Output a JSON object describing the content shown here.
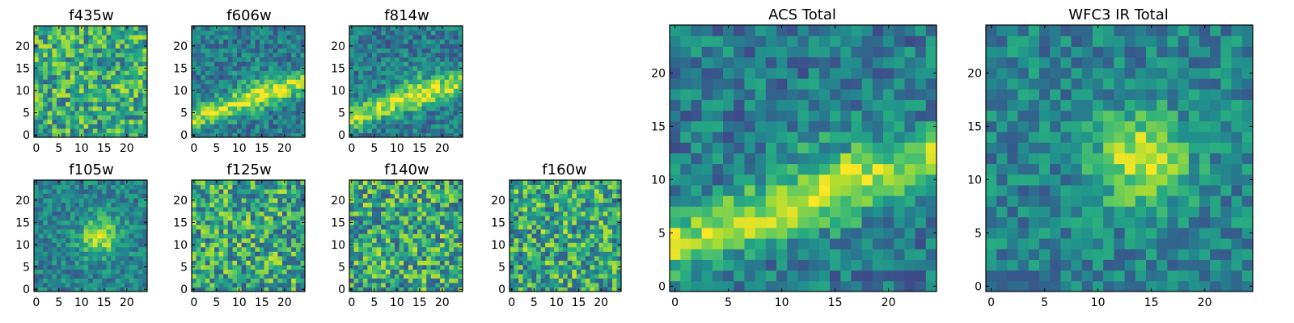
{
  "chart_data": [
    {
      "type": "heatmap",
      "title": "f435w",
      "xticks": [
        "0",
        "5",
        "10",
        "15",
        "20"
      ],
      "yticks": [
        "0",
        "5",
        "10",
        "15",
        "20"
      ],
      "xlim": [
        0,
        24
      ],
      "ylim": [
        0,
        24
      ],
      "grid": false,
      "colormap": "viridis",
      "pattern": "noise",
      "seed": 11
    },
    {
      "type": "heatmap",
      "title": "f606w",
      "xticks": [
        "0",
        "5",
        "10",
        "15",
        "20"
      ],
      "yticks": [
        "0",
        "5",
        "10",
        "15",
        "20"
      ],
      "xlim": [
        0,
        24
      ],
      "ylim": [
        0,
        24
      ],
      "grid": false,
      "colormap": "viridis",
      "pattern": "band",
      "seed": 23
    },
    {
      "type": "heatmap",
      "title": "f814w",
      "xticks": [
        "0",
        "5",
        "10",
        "15",
        "20"
      ],
      "yticks": [
        "0",
        "5",
        "10",
        "15",
        "20"
      ],
      "xlim": [
        0,
        24
      ],
      "ylim": [
        0,
        24
      ],
      "grid": false,
      "colormap": "viridis",
      "pattern": "band",
      "seed": 37
    },
    {
      "type": "heatmap",
      "title": "f105w",
      "xticks": [
        "0",
        "5",
        "10",
        "15",
        "20"
      ],
      "yticks": [
        "0",
        "5",
        "10",
        "15",
        "20"
      ],
      "xlim": [
        0,
        24
      ],
      "ylim": [
        0,
        24
      ],
      "grid": false,
      "colormap": "viridis",
      "pattern": "blob",
      "seed": 41
    },
    {
      "type": "heatmap",
      "title": "f125w",
      "xticks": [
        "0",
        "5",
        "10",
        "15",
        "20"
      ],
      "yticks": [
        "0",
        "5",
        "10",
        "15",
        "20"
      ],
      "xlim": [
        0,
        24
      ],
      "ylim": [
        0,
        24
      ],
      "grid": false,
      "colormap": "viridis",
      "pattern": "noise-bright",
      "seed": 53
    },
    {
      "type": "heatmap",
      "title": "f140w",
      "xticks": [
        "0",
        "5",
        "10",
        "15",
        "20"
      ],
      "yticks": [
        "0",
        "5",
        "10",
        "15",
        "20"
      ],
      "xlim": [
        0,
        24
      ],
      "ylim": [
        0,
        24
      ],
      "grid": false,
      "colormap": "viridis",
      "pattern": "noise-bright",
      "seed": 67
    },
    {
      "type": "heatmap",
      "title": "f160w",
      "xticks": [
        "0",
        "5",
        "10",
        "15",
        "20"
      ],
      "yticks": [
        "0",
        "5",
        "10",
        "15",
        "20"
      ],
      "xlim": [
        0,
        24
      ],
      "ylim": [
        0,
        24
      ],
      "grid": false,
      "colormap": "viridis",
      "pattern": "noise-bright",
      "seed": 79
    },
    {
      "type": "heatmap",
      "title": "ACS Total",
      "xticks": [
        "0",
        "5",
        "10",
        "15",
        "20"
      ],
      "yticks": [
        "0",
        "5",
        "10",
        "15",
        "20"
      ],
      "xlim": [
        0,
        24
      ],
      "ylim": [
        0,
        24
      ],
      "grid": false,
      "colormap": "viridis",
      "pattern": "band",
      "seed": 83
    },
    {
      "type": "heatmap",
      "title": "WFC3 IR Total",
      "xticks": [
        "0",
        "5",
        "10",
        "15",
        "20"
      ],
      "yticks": [
        "0",
        "5",
        "10",
        "15",
        "20"
      ],
      "xlim": [
        0,
        24
      ],
      "ylim": [
        0,
        24
      ],
      "grid": false,
      "colormap": "viridis",
      "pattern": "blob",
      "seed": 97
    }
  ]
}
